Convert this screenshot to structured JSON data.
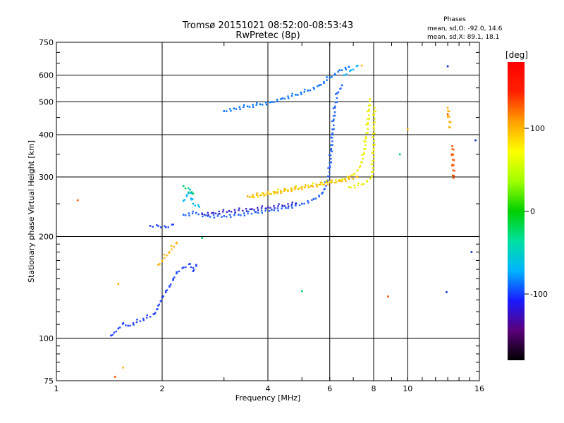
{
  "chart_data": {
    "type": "scatter",
    "title_line1": "Tromsø 20151021 08:52:00-08:53:43",
    "title_line2": "RwPretec (8p)",
    "xlabel": "Frequency [MHz]",
    "ylabel": "Stationary phase Virtual Height [km]",
    "x_scale": "log",
    "y_scale": "log",
    "xlim": [
      1,
      16
    ],
    "ylim": [
      75,
      750
    ],
    "x_ticks": [
      1,
      2,
      4,
      6,
      8,
      10,
      16
    ],
    "y_ticks": [
      75,
      100,
      200,
      300,
      400,
      500,
      600,
      750
    ],
    "grid": true,
    "stats": {
      "heading": "Phases",
      "line_o": "mean, sd,O: -92.0, 14.6",
      "line_x": "mean, sd,X:  89.1, 18.1"
    },
    "colorbar": {
      "label": "[deg]",
      "range": [
        -180,
        180
      ],
      "ticks": [
        100,
        0,
        -100
      ],
      "stops": [
        "#000000",
        "#5a007a",
        "#1a1aff",
        "#00b4ff",
        "#00e0a0",
        "#00d000",
        "#a0ff00",
        "#ffff00",
        "#ffa000",
        "#ff2000",
        "#ff0000"
      ]
    },
    "series": [
      {
        "color": "#2244ff",
        "points": [
          [
            1.43,
            102
          ],
          [
            1.46,
            104
          ],
          [
            1.5,
            107
          ],
          [
            1.55,
            111
          ],
          [
            1.6,
            109
          ],
          [
            1.9,
            118
          ],
          [
            1.95,
            125
          ],
          [
            2.0,
            132
          ],
          [
            2.05,
            138
          ],
          [
            2.1,
            143
          ],
          [
            2.15,
            150
          ],
          [
            2.2,
            157
          ],
          [
            2.3,
            162
          ],
          [
            2.4,
            166
          ],
          [
            2.45,
            158
          ],
          [
            2.5,
            165
          ],
          [
            1.85,
            215
          ],
          [
            1.95,
            215
          ],
          [
            2.05,
            213
          ],
          [
            2.15,
            217
          ]
        ]
      },
      {
        "color": "#2060ff",
        "points": [
          [
            2.3,
            232
          ],
          [
            2.5,
            235
          ],
          [
            2.7,
            230
          ],
          [
            3.0,
            230
          ],
          [
            3.3,
            232
          ],
          [
            3.7,
            236
          ],
          [
            4.1,
            240
          ],
          [
            4.5,
            243
          ],
          [
            5.0,
            250
          ],
          [
            5.4,
            258
          ],
          [
            5.7,
            268
          ],
          [
            5.9,
            290
          ],
          [
            6.0,
            320
          ],
          [
            6.05,
            360
          ],
          [
            6.1,
            400
          ],
          [
            6.15,
            440
          ],
          [
            6.2,
            480
          ],
          [
            6.3,
            530
          ],
          [
            6.5,
            560
          ]
        ]
      },
      {
        "color": "#3322cc",
        "points": [
          [
            2.6,
            233
          ],
          [
            2.8,
            235
          ],
          [
            3.1,
            238
          ],
          [
            3.6,
            241
          ],
          [
            4.0,
            244
          ],
          [
            4.4,
            247
          ],
          [
            4.8,
            250
          ]
        ]
      },
      {
        "color": "#0070ff",
        "points": [
          [
            3.0,
            470
          ],
          [
            3.2,
            478
          ],
          [
            3.5,
            485
          ],
          [
            3.8,
            492
          ],
          [
            4.1,
            500
          ],
          [
            4.4,
            512
          ],
          [
            4.8,
            525
          ],
          [
            5.2,
            540
          ],
          [
            5.6,
            560
          ],
          [
            6.0,
            590
          ],
          [
            6.4,
            620
          ],
          [
            6.8,
            635
          ]
        ]
      },
      {
        "color": "#00b8ff",
        "points": [
          [
            2.3,
            255
          ],
          [
            2.35,
            265
          ],
          [
            2.4,
            275
          ],
          [
            2.45,
            250
          ],
          [
            2.55,
            245
          ],
          [
            6.6,
            600
          ],
          [
            6.9,
            620
          ],
          [
            7.2,
            640
          ]
        ]
      },
      {
        "color": "#eeee00",
        "points": [
          [
            3.6,
            262
          ],
          [
            4.0,
            268
          ],
          [
            4.5,
            275
          ],
          [
            5.0,
            280
          ],
          [
            5.5,
            285
          ],
          [
            6.0,
            290
          ],
          [
            6.5,
            295
          ],
          [
            7.0,
            305
          ],
          [
            7.3,
            320
          ],
          [
            7.5,
            350
          ],
          [
            7.6,
            390
          ],
          [
            7.7,
            430
          ],
          [
            7.75,
            470
          ],
          [
            7.8,
            510
          ],
          [
            6.8,
            280
          ],
          [
            7.4,
            285
          ],
          [
            7.9,
            300
          ],
          [
            8.0,
            360
          ],
          [
            8.0,
            420
          ],
          [
            8.05,
            480
          ]
        ]
      },
      {
        "color": "#ffb000",
        "points": [
          [
            3.5,
            263
          ],
          [
            4.2,
            270
          ],
          [
            5.3,
            282
          ],
          [
            6.4,
            292
          ],
          [
            7.2,
            300
          ],
          [
            1.5,
            145
          ],
          [
            1.55,
            82
          ],
          [
            1.95,
            165
          ],
          [
            2.2,
            192
          ],
          [
            7.4,
            640
          ],
          [
            10.0,
            415
          ],
          [
            13.0,
            480
          ],
          [
            13.2,
            420
          ]
        ]
      },
      {
        "color": "#ff5000",
        "points": [
          [
            1.15,
            256
          ],
          [
            1.47,
            77
          ],
          [
            8.8,
            133
          ],
          [
            13.4,
            370
          ],
          [
            13.5,
            298
          ],
          [
            13.0,
            460
          ]
        ]
      },
      {
        "color": "#00cc66",
        "points": [
          [
            2.3,
            282
          ],
          [
            2.45,
            268
          ],
          [
            2.6,
            198
          ],
          [
            5.0,
            138
          ],
          [
            9.5,
            350
          ]
        ]
      },
      {
        "color": "#0030c0",
        "points": [
          [
            13.0,
            637
          ],
          [
            12.9,
            137
          ],
          [
            15.2,
            180
          ],
          [
            15.6,
            385
          ]
        ]
      }
    ]
  }
}
